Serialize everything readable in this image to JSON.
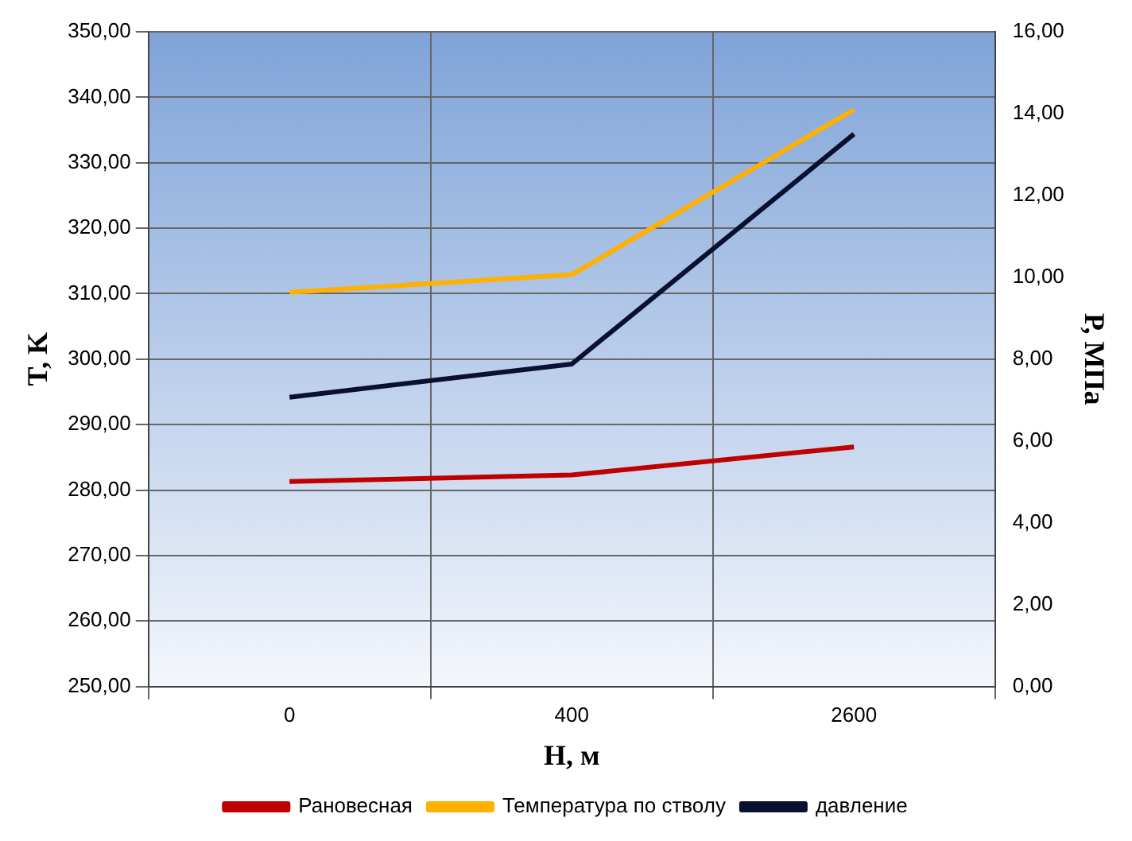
{
  "chart_data": {
    "type": "line",
    "xlabel": "H, м",
    "ylabel": "T, K",
    "y2label": "Р, МПа",
    "categories": [
      "0",
      "400",
      "2600"
    ],
    "series": [
      {
        "name": "Рановесная",
        "color": "#c00000",
        "values": [
          281.3,
          282.3,
          286.6
        ]
      },
      {
        "name": "Температура по стволу",
        "color": "#ffb000",
        "values": [
          310.2,
          312.9,
          338.1
        ]
      },
      {
        "name": "давление",
        "color": "#0a1030",
        "values": [
          7.07,
          7.88,
          13.5
        ],
        "axis": "y2"
      }
    ],
    "ylim": [
      250,
      350
    ],
    "yticks": [
      {
        "value": 250,
        "label": "250,00"
      },
      {
        "value": 260,
        "label": "260,00"
      },
      {
        "value": 270,
        "label": "270,00"
      },
      {
        "value": 280,
        "label": "280,00"
      },
      {
        "value": 290,
        "label": "290,00"
      },
      {
        "value": 300,
        "label": "300,00"
      },
      {
        "value": 310,
        "label": "310,00"
      },
      {
        "value": 320,
        "label": "320,00"
      },
      {
        "value": 330,
        "label": "330,00"
      },
      {
        "value": 340,
        "label": "340,00"
      },
      {
        "value": 350,
        "label": "350,00"
      }
    ],
    "y2lim": [
      0,
      16
    ],
    "y2ticks": [
      {
        "value": 0,
        "label": "0,00"
      },
      {
        "value": 2,
        "label": "2,00"
      },
      {
        "value": 4,
        "label": "4,00"
      },
      {
        "value": 6,
        "label": "6,00"
      },
      {
        "value": 8,
        "label": "8,00"
      },
      {
        "value": 10,
        "label": "10,00"
      },
      {
        "value": 12,
        "label": "12,00"
      },
      {
        "value": 14,
        "label": "14,00"
      },
      {
        "value": 16,
        "label": "16,00"
      }
    ],
    "grid": true,
    "legend": "bottom",
    "marker": "none",
    "line_style": "solid"
  }
}
